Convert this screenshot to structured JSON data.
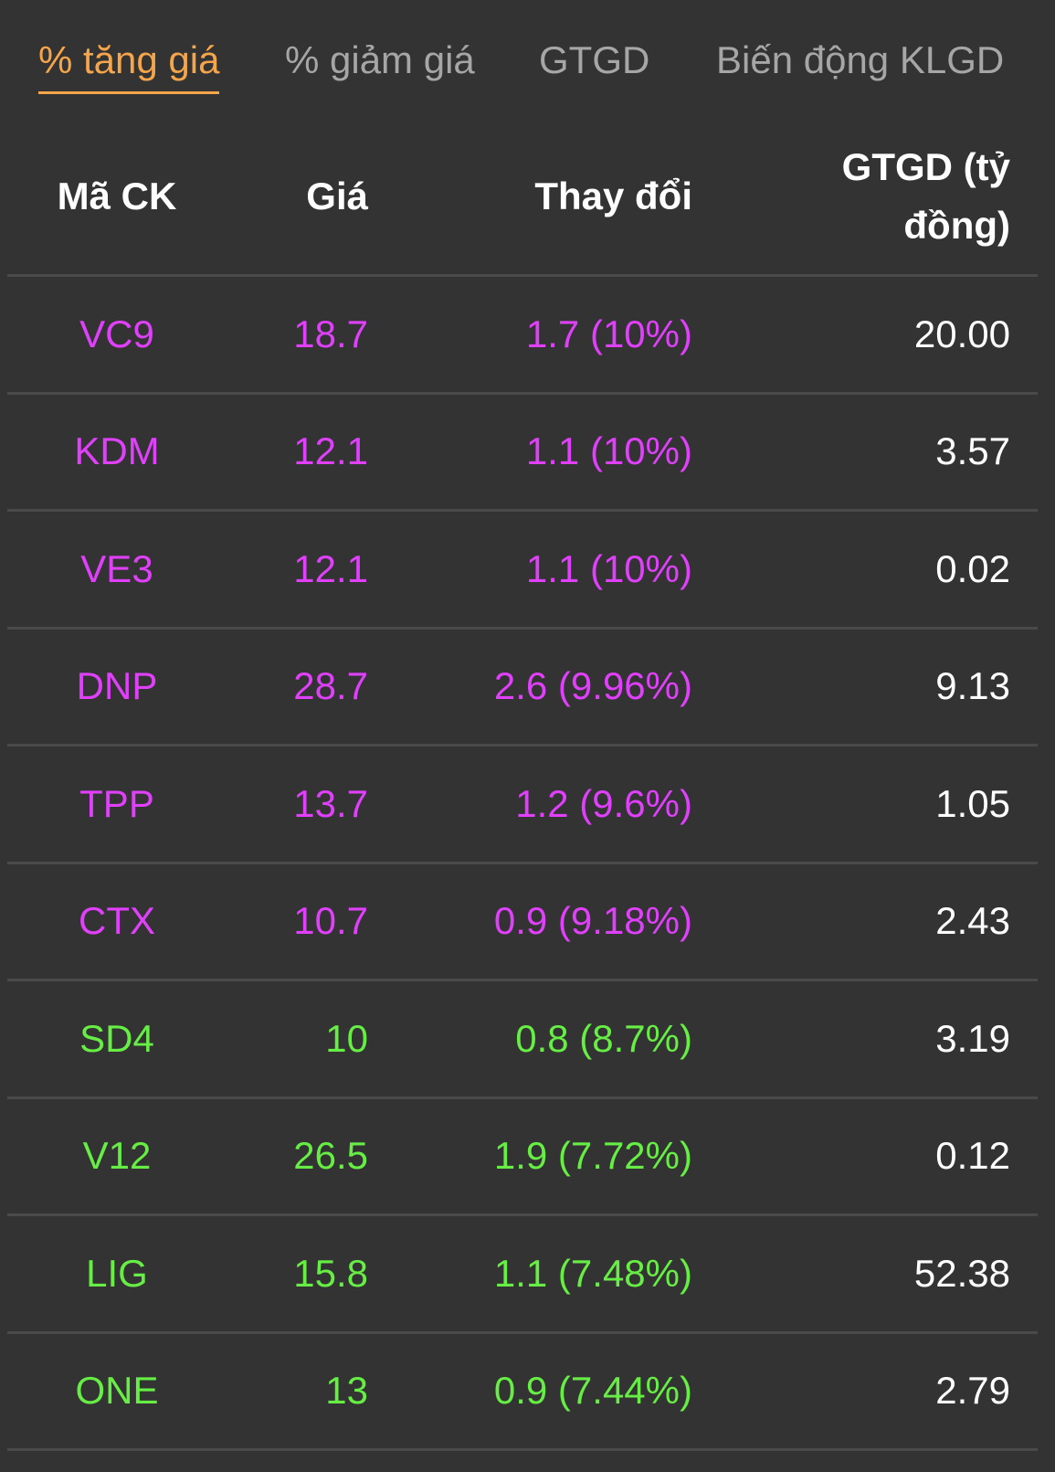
{
  "tabs": [
    {
      "label": "% tăng giá",
      "active": true
    },
    {
      "label": "% giảm giá",
      "active": false
    },
    {
      "label": "GTGD",
      "active": false
    },
    {
      "label": "Biến động KLGD",
      "active": false
    }
  ],
  "table": {
    "headers": {
      "symbol": "Mã CK",
      "price": "Giá",
      "change": "Thay đổi",
      "value": "GTGD (tỷ đồng)"
    },
    "rows": [
      {
        "symbol": "VC9",
        "price": "18.7",
        "change": "1.7 (10%)",
        "value": "20.00",
        "color": "#e040fb"
      },
      {
        "symbol": "KDM",
        "price": "12.1",
        "change": "1.1 (10%)",
        "value": "3.57",
        "color": "#e040fb"
      },
      {
        "symbol": "VE3",
        "price": "12.1",
        "change": "1.1 (10%)",
        "value": "0.02",
        "color": "#e040fb"
      },
      {
        "symbol": "DNP",
        "price": "28.7",
        "change": "2.6 (9.96%)",
        "value": "9.13",
        "color": "#e040fb"
      },
      {
        "symbol": "TPP",
        "price": "13.7",
        "change": "1.2 (9.6%)",
        "value": "1.05",
        "color": "#e040fb"
      },
      {
        "symbol": "CTX",
        "price": "10.7",
        "change": "0.9 (9.18%)",
        "value": "2.43",
        "color": "#e040fb"
      },
      {
        "symbol": "SD4",
        "price": "10",
        "change": "0.8 (8.7%)",
        "value": "3.19",
        "color": "#66ee44"
      },
      {
        "symbol": "V12",
        "price": "26.5",
        "change": "1.9 (7.72%)",
        "value": "0.12",
        "color": "#66ee44"
      },
      {
        "symbol": "LIG",
        "price": "15.8",
        "change": "1.1 (7.48%)",
        "value": "52.38",
        "color": "#66ee44"
      },
      {
        "symbol": "ONE",
        "price": "13",
        "change": "0.9 (7.44%)",
        "value": "2.79",
        "color": "#66ee44"
      }
    ]
  }
}
